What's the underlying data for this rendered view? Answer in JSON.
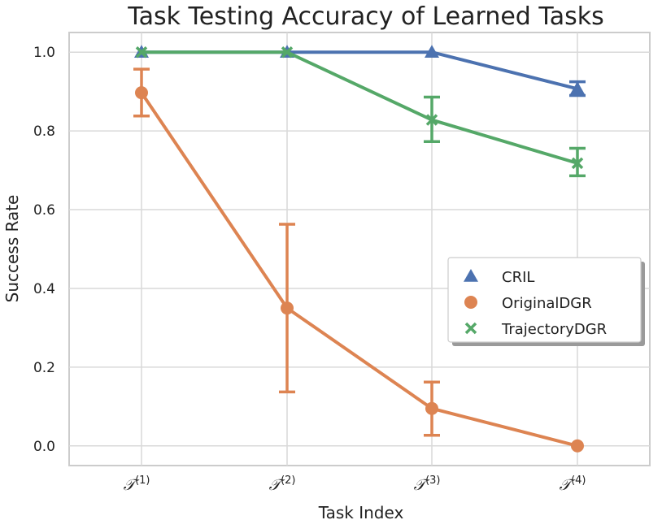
{
  "chart_data": {
    "type": "line",
    "title": "Task Testing Accuracy of Learned Tasks",
    "xlabel": "Task Index",
    "ylabel": "Success Rate",
    "categories": [
      {
        "base": "𝒯",
        "sup": "(1)"
      },
      {
        "base": "𝒯",
        "sup": "(2)"
      },
      {
        "base": "𝒯",
        "sup": "(3)"
      },
      {
        "base": "𝒯",
        "sup": "(4)"
      }
    ],
    "ylim": [
      -0.05,
      1.05
    ],
    "yticks": [
      0.0,
      0.2,
      0.4,
      0.6,
      0.8,
      1.0
    ],
    "ytick_labels": [
      "0.0",
      "0.2",
      "0.4",
      "0.6",
      "0.8",
      "1.0"
    ],
    "grid": true,
    "legend_position": "center-right",
    "series": [
      {
        "name": "CRIL",
        "color": "#4c72b0",
        "marker": "triangle",
        "values": [
          1.0,
          1.0,
          1.0,
          0.907
        ],
        "err_low": [
          1.0,
          1.0,
          1.0,
          0.89
        ],
        "err_high": [
          1.0,
          1.0,
          1.0,
          0.925
        ]
      },
      {
        "name": "OriginalDGR",
        "color": "#dd8452",
        "marker": "circle",
        "values": [
          0.897,
          0.35,
          0.095,
          0.0
        ],
        "err_low": [
          0.838,
          0.137,
          0.027,
          0.0
        ],
        "err_high": [
          0.957,
          0.563,
          0.162,
          0.0
        ]
      },
      {
        "name": "TrajectoryDGR",
        "color": "#55a868",
        "marker": "x",
        "values": [
          1.0,
          1.0,
          0.828,
          0.718
        ],
        "err_low": [
          1.0,
          1.0,
          0.773,
          0.686
        ],
        "err_high": [
          1.0,
          1.0,
          0.886,
          0.756
        ]
      }
    ]
  }
}
